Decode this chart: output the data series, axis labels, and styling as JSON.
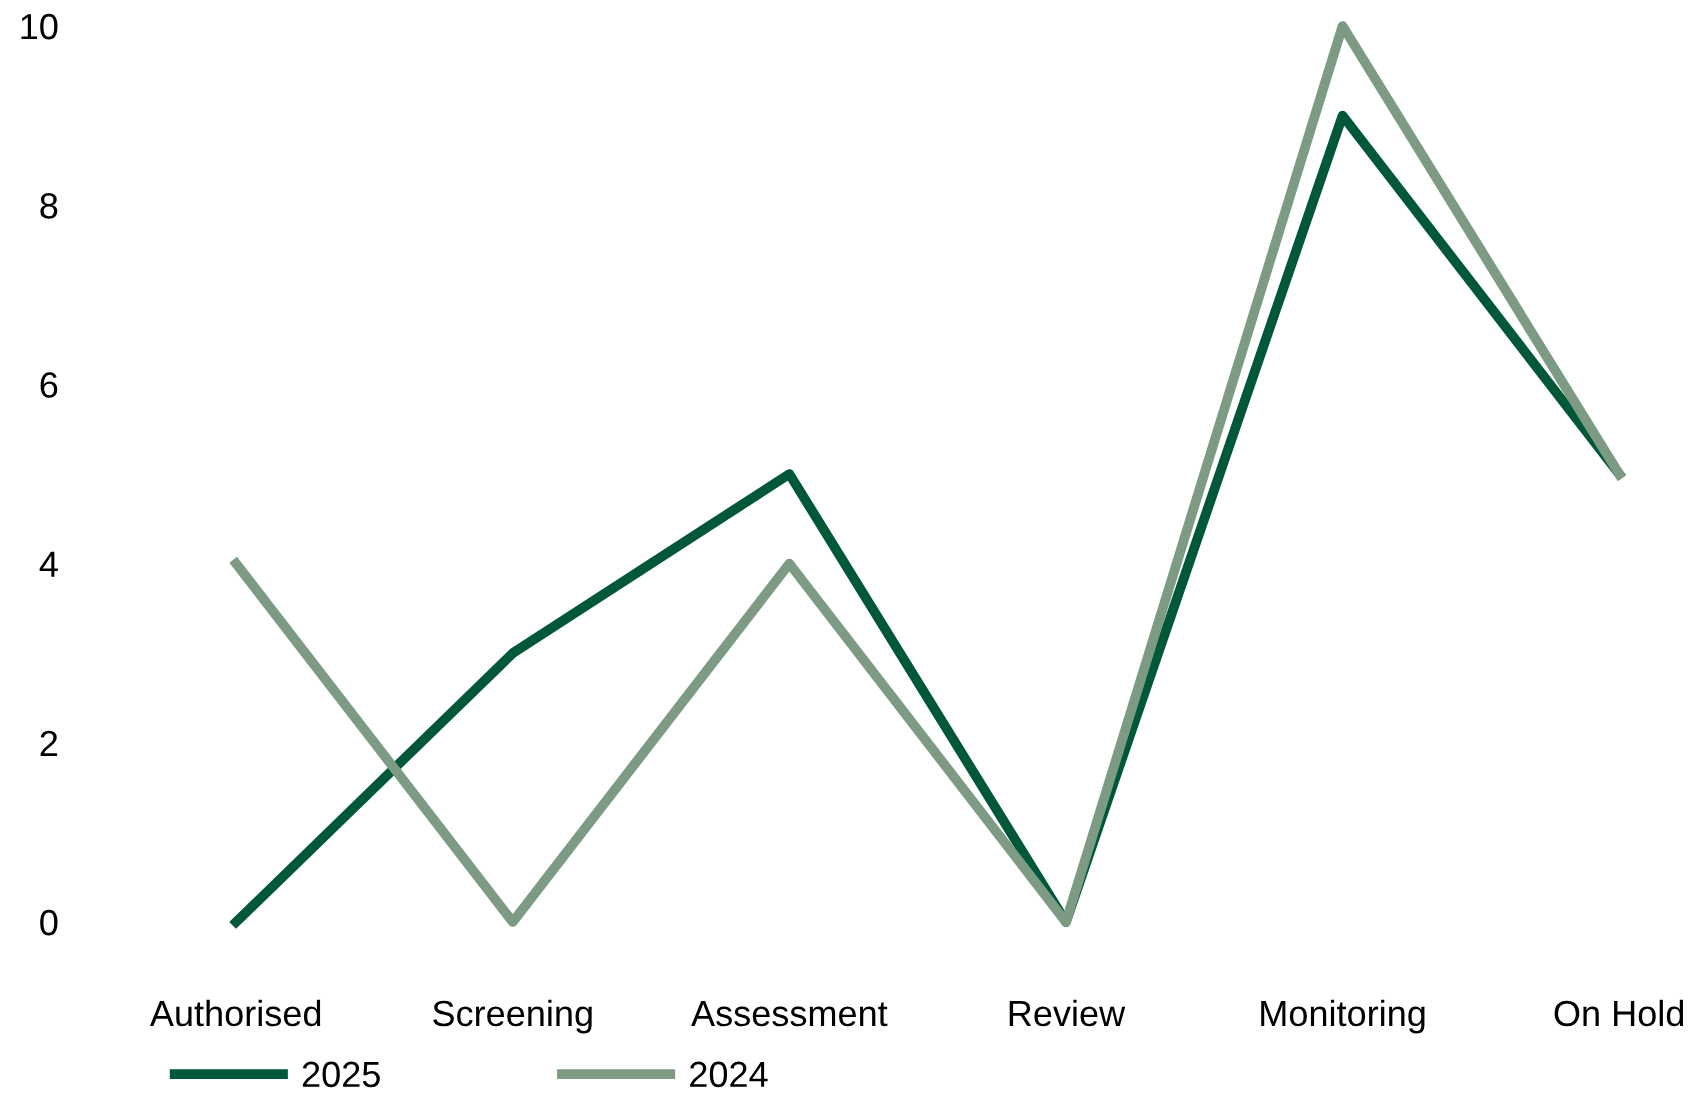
{
  "chart_data": {
    "type": "line",
    "categories": [
      "Authorised",
      "Screening",
      "Assessment",
      "Review",
      "Monitoring",
      "On Hold"
    ],
    "series": [
      {
        "name": "2025",
        "color": "#00573a",
        "values": [
          0,
          3,
          5,
          0,
          9,
          5
        ]
      },
      {
        "name": "2024",
        "color": "#7c9b82",
        "values": [
          4,
          0,
          4,
          0,
          10,
          5
        ]
      }
    ],
    "ylim": [
      0,
      10
    ],
    "yticks": [
      0,
      2,
      4,
      6,
      8,
      10
    ],
    "grid": false,
    "legend": "bottom",
    "marker": "none",
    "line_style": "solid"
  }
}
